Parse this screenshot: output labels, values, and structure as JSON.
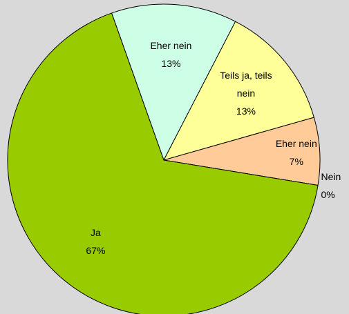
{
  "chart_data": {
    "type": "pie",
    "categories": [
      "Eher nein",
      "Teils ja, teils nein",
      "Eher nein",
      "Nein",
      "Ja"
    ],
    "values": [
      13,
      13,
      7,
      0,
      67
    ],
    "value_labels": [
      "13%",
      "13%",
      "7%",
      "0%",
      "67%"
    ],
    "colors": [
      "#ccffe5",
      "#ffff99",
      "#ffcc99",
      "#ff9966",
      "#99cc00"
    ]
  }
}
